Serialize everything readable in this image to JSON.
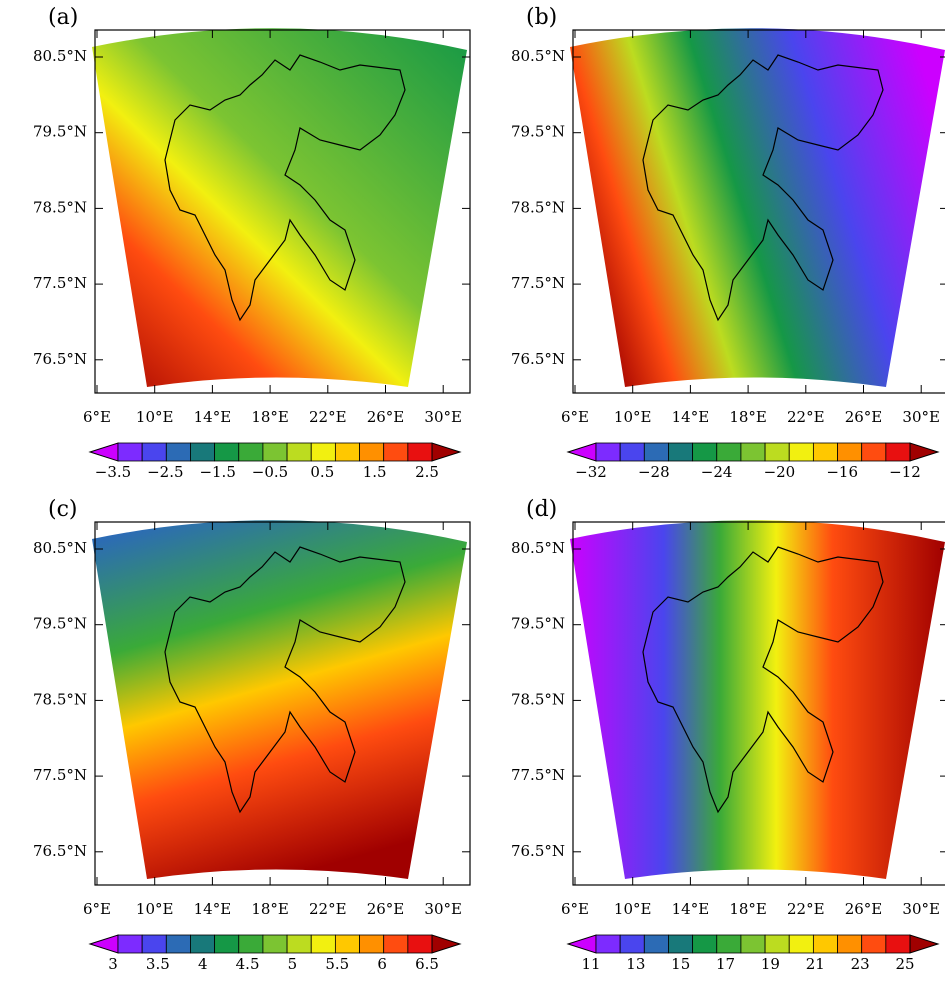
{
  "colorbar_colors": [
    "#cc00ff",
    "#7d2bff",
    "#4a45ee",
    "#2c6bb5",
    "#18797a",
    "#159846",
    "#3aaa38",
    "#7cc432",
    "#bcdc20",
    "#f2f010",
    "#ffc800",
    "#ff9000",
    "#ff4c10",
    "#e81010",
    "#a00000"
  ],
  "panels": [
    {
      "label": "(a)",
      "lat_labels": [
        "80.5°N",
        "79.5°N",
        "78.5°N",
        "77.5°N",
        "76.5°N"
      ],
      "lon_labels": [
        "6°E",
        "10°E",
        "14°E",
        "18°E",
        "22°E",
        "26°E",
        "30°E"
      ],
      "colorbar_labels": [
        "−3.5",
        "−2.5",
        "−1.5",
        "−0.5",
        "0.5",
        "1.5",
        "2.5"
      ]
    },
    {
      "label": "(b)",
      "lat_labels": [
        "80.5°N",
        "79.5°N",
        "78.5°N",
        "77.5°N",
        "76.5°N"
      ],
      "lon_labels": [
        "6°E",
        "10°E",
        "14°E",
        "18°E",
        "22°E",
        "26°E",
        "30°E"
      ],
      "colorbar_labels": [
        "−32",
        "−28",
        "−24",
        "−20",
        "−16",
        "−12"
      ]
    },
    {
      "label": "(c)",
      "lat_labels": [
        "80.5°N",
        "79.5°N",
        "78.5°N",
        "77.5°N",
        "76.5°N"
      ],
      "lon_labels": [
        "6°E",
        "10°E",
        "14°E",
        "18°E",
        "22°E",
        "26°E",
        "30°E"
      ],
      "colorbar_labels": [
        "3",
        "3.5",
        "4",
        "4.5",
        "5",
        "5.5",
        "6",
        "6.5"
      ]
    },
    {
      "label": "(d)",
      "lat_labels": [
        "80.5°N",
        "79.5°N",
        "78.5°N",
        "77.5°N",
        "76.5°N"
      ],
      "lon_labels": [
        "6°E",
        "10°E",
        "14°E",
        "18°E",
        "22°E",
        "26°E",
        "30°E"
      ],
      "colorbar_labels": [
        "11",
        "13",
        "15",
        "17",
        "19",
        "21",
        "23",
        "25"
      ]
    }
  ]
}
